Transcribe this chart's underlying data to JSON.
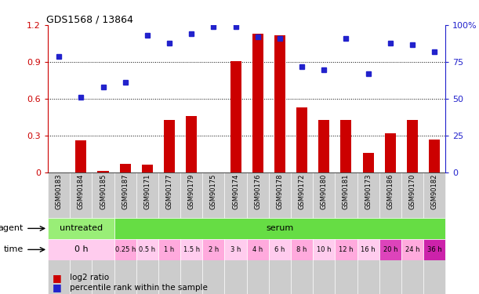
{
  "title": "GDS1568 / 13864",
  "samples": [
    "GSM90183",
    "GSM90184",
    "GSM90185",
    "GSM90187",
    "GSM90171",
    "GSM90177",
    "GSM90179",
    "GSM90175",
    "GSM90174",
    "GSM90176",
    "GSM90178",
    "GSM90172",
    "GSM90180",
    "GSM90181",
    "GSM90173",
    "GSM90186",
    "GSM90170",
    "GSM90182"
  ],
  "log2_ratio": [
    0.0,
    0.26,
    0.01,
    0.07,
    0.06,
    0.43,
    0.46,
    0.0,
    0.91,
    1.13,
    1.12,
    0.53,
    0.43,
    0.43,
    0.16,
    0.32,
    0.43,
    0.27
  ],
  "percentile_rank": [
    79,
    51,
    58,
    61,
    93,
    88,
    94,
    99,
    99,
    92,
    91,
    72,
    70,
    91,
    67,
    88,
    87,
    82
  ],
  "ylim_left": [
    0,
    1.2
  ],
  "ylim_right": [
    0,
    100
  ],
  "yticks_left": [
    0,
    0.3,
    0.6,
    0.9,
    1.2
  ],
  "yticks_right": [
    0,
    25,
    50,
    75,
    100
  ],
  "bar_color": "#cc0000",
  "dot_color": "#2222cc",
  "agent_untreated_color": "#99ee77",
  "agent_serum_color": "#66dd44",
  "time_light": "#ffccee",
  "time_mid": "#ffaadd",
  "time_dark": "#dd44bb",
  "time_darkest": "#cc22aa",
  "sample_box_color": "#cccccc",
  "legend_red_label": "log2 ratio",
  "legend_blue_label": "percentile rank within the sample",
  "axis_color_left": "#cc0000",
  "axis_color_right": "#2222cc",
  "time_blocks": [
    {
      "label": "0 h",
      "start": 0,
      "end": 2,
      "color": "#ffccee"
    },
    {
      "label": "0.25 h",
      "start": 3,
      "end": 3,
      "color": "#ffaadd"
    },
    {
      "label": "0.5 h",
      "start": 4,
      "end": 4,
      "color": "#ffccee"
    },
    {
      "label": "1 h",
      "start": 5,
      "end": 5,
      "color": "#ffaadd"
    },
    {
      "label": "1.5 h",
      "start": 6,
      "end": 6,
      "color": "#ffccee"
    },
    {
      "label": "2 h",
      "start": 7,
      "end": 7,
      "color": "#ffaadd"
    },
    {
      "label": "3 h",
      "start": 8,
      "end": 8,
      "color": "#ffccee"
    },
    {
      "label": "4 h",
      "start": 9,
      "end": 9,
      "color": "#ffaadd"
    },
    {
      "label": "6 h",
      "start": 10,
      "end": 10,
      "color": "#ffccee"
    },
    {
      "label": "8 h",
      "start": 11,
      "end": 11,
      "color": "#ffaadd"
    },
    {
      "label": "10 h",
      "start": 12,
      "end": 12,
      "color": "#ffccee"
    },
    {
      "label": "12 h",
      "start": 13,
      "end": 13,
      "color": "#ffaadd"
    },
    {
      "label": "16 h",
      "start": 14,
      "end": 14,
      "color": "#ffccee"
    },
    {
      "label": "20 h",
      "start": 15,
      "end": 15,
      "color": "#dd44bb"
    },
    {
      "label": "24 h",
      "start": 16,
      "end": 16,
      "color": "#ffaadd"
    },
    {
      "label": "36 h",
      "start": 17,
      "end": 17,
      "color": "#cc22aa"
    }
  ]
}
